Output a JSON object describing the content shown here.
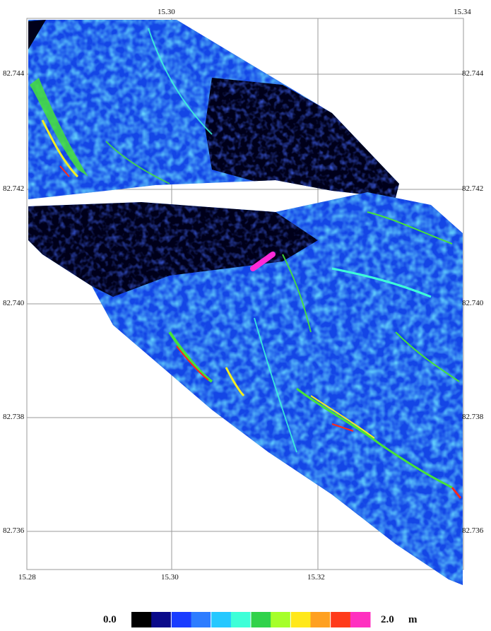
{
  "map": {
    "x_ticks": [
      "15.28",
      "15.30",
      "15.32"
    ],
    "x_ticks_top": [
      "15.30",
      "15.34"
    ],
    "y_ticks_left": [
      "82.744",
      "82.742",
      "82.740",
      "82.738",
      "82.736"
    ],
    "y_ticks_right": [
      "82.744",
      "82.742",
      "82.740",
      "82.738",
      "82.736"
    ],
    "colorbar": {
      "min_label": "0.0",
      "max_label": "2.0",
      "unit": "m",
      "colors": [
        "#000000",
        "#0a0a8a",
        "#1a3cff",
        "#2e7dff",
        "#25c8ff",
        "#3effd8",
        "#30d24a",
        "#a6ff2a",
        "#ffe81a",
        "#ffa020",
        "#ff3a1a",
        "#ff30c0"
      ]
    },
    "colors": {
      "deep": "#0a1cd8",
      "mid": "#1e6cff",
      "light": "#29c6ff",
      "dark": "#00001a",
      "highlight_green": "#46e23a",
      "highlight_yellow": "#f3ef1f",
      "highlight_red": "#ff2a18",
      "magenta": "#ff2ad8"
    }
  }
}
